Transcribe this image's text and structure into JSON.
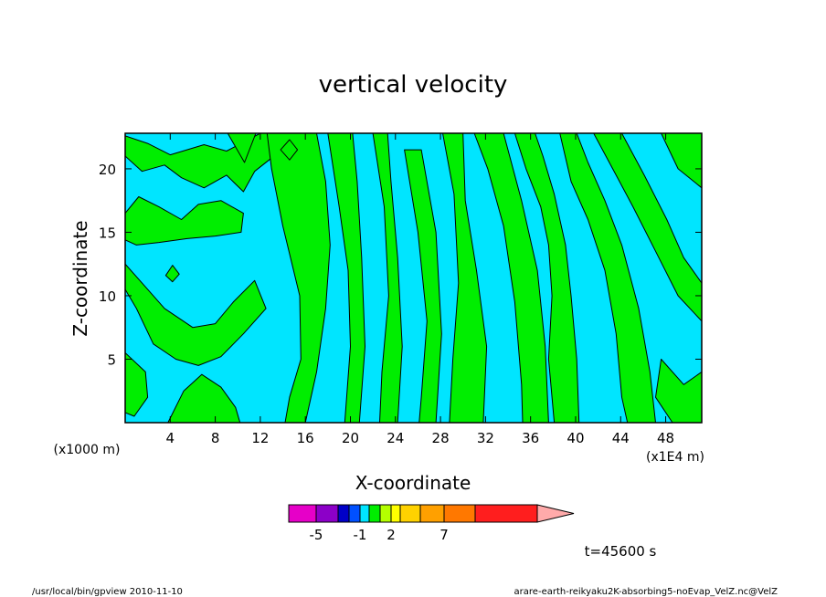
{
  "chart_data": {
    "type": "heatmap",
    "title": "vertical velocity",
    "xlabel": "X-coordinate",
    "ylabel": "Z-coordinate",
    "x_unit_note": "(x1000 m)",
    "x_scale_note": "(x1E4 m)",
    "time_label": "t=45600 s",
    "xlim": [
      0,
      51.2
    ],
    "ylim": [
      0,
      22.8
    ],
    "x_ticks": [
      "4",
      "8",
      "12",
      "16",
      "20",
      "24",
      "28",
      "32",
      "36",
      "40",
      "44",
      "48"
    ],
    "x_tick_values": [
      4,
      8,
      12,
      16,
      20,
      24,
      28,
      32,
      36,
      40,
      44,
      48
    ],
    "y_ticks": [
      "5",
      "10",
      "15",
      "20"
    ],
    "y_tick_values": [
      5,
      10,
      15,
      20
    ],
    "field_colors": {
      "negative": "#00e5ff",
      "positive": "#00ee00",
      "contour": "#000000"
    },
    "positive_bands": [
      {
        "points": [
          [
            0,
            16.5
          ],
          [
            1.2,
            17.8
          ],
          [
            3,
            17
          ],
          [
            5,
            16
          ],
          [
            6.5,
            17.2
          ],
          [
            8.5,
            17.5
          ],
          [
            10.5,
            16.5
          ],
          [
            10.3,
            15
          ],
          [
            8,
            14.7
          ],
          [
            5.5,
            14.5
          ],
          [
            3,
            14.2
          ],
          [
            1,
            14
          ],
          [
            0,
            14.4
          ]
        ]
      },
      {
        "points": [
          [
            0,
            21
          ],
          [
            1.5,
            19.8
          ],
          [
            3.5,
            20.3
          ],
          [
            5,
            19.3
          ],
          [
            7,
            18.5
          ],
          [
            9,
            19.5
          ],
          [
            10.5,
            18.2
          ],
          [
            11.5,
            19.8
          ],
          [
            13.5,
            21.2
          ],
          [
            14.5,
            22.8
          ],
          [
            12,
            22.8
          ],
          [
            9,
            21.4
          ],
          [
            7,
            21.9
          ],
          [
            4,
            21.1
          ],
          [
            2,
            22
          ],
          [
            0,
            22.6
          ]
        ]
      },
      {
        "points": [
          [
            0,
            12.5
          ],
          [
            1.5,
            11
          ],
          [
            3.5,
            9
          ],
          [
            6,
            7.5
          ],
          [
            8,
            7.8
          ],
          [
            9.6,
            9.5
          ],
          [
            11.5,
            11.2
          ],
          [
            12.5,
            9
          ],
          [
            10.5,
            7
          ],
          [
            8.5,
            5.2
          ],
          [
            6.5,
            4.5
          ],
          [
            4.5,
            5
          ],
          [
            2.5,
            6.2
          ],
          [
            1,
            9
          ],
          [
            0,
            10.5
          ]
        ]
      },
      {
        "points": [
          [
            0,
            5.5
          ],
          [
            1.8,
            4
          ],
          [
            2,
            2
          ],
          [
            0.8,
            0.5
          ],
          [
            0,
            0.8
          ]
        ]
      },
      {
        "points": [
          [
            3.8,
            0
          ],
          [
            5.2,
            2.5
          ],
          [
            6.8,
            3.8
          ],
          [
            8.5,
            2.8
          ],
          [
            9.8,
            1.2
          ],
          [
            10.2,
            0
          ]
        ]
      },
      {
        "points": [
          [
            12.6,
            22.8
          ],
          [
            13,
            20
          ],
          [
            14,
            15.5
          ],
          [
            15.5,
            10
          ],
          [
            15.6,
            5
          ],
          [
            14.6,
            2
          ],
          [
            14.2,
            0
          ],
          [
            16,
            0
          ],
          [
            17,
            4
          ],
          [
            17.8,
            9
          ],
          [
            18.2,
            14
          ],
          [
            17.8,
            19
          ],
          [
            17,
            22.8
          ]
        ]
      },
      {
        "points": [
          [
            18,
            22.8
          ],
          [
            19,
            17
          ],
          [
            19.8,
            12
          ],
          [
            20,
            6
          ],
          [
            19.5,
            0
          ],
          [
            20.8,
            0
          ],
          [
            21.3,
            6
          ],
          [
            21,
            13
          ],
          [
            20.6,
            19
          ],
          [
            20.2,
            22.8
          ]
        ]
      },
      {
        "points": [
          [
            22,
            22.8
          ],
          [
            23,
            17
          ],
          [
            23.4,
            10
          ],
          [
            22.8,
            4
          ],
          [
            22.6,
            0
          ],
          [
            24.2,
            0
          ],
          [
            24.6,
            6
          ],
          [
            24.2,
            13
          ],
          [
            23.6,
            19
          ],
          [
            23.3,
            22.8
          ]
        ]
      },
      {
        "points": [
          [
            24.8,
            21.5
          ],
          [
            26,
            15
          ],
          [
            26.8,
            8
          ],
          [
            26.3,
            2
          ],
          [
            26.1,
            0
          ],
          [
            27.6,
            0
          ],
          [
            28.1,
            7
          ],
          [
            27.6,
            15
          ],
          [
            26.3,
            21.5
          ]
        ]
      },
      {
        "points": [
          [
            28.2,
            22.8
          ],
          [
            29.2,
            18
          ],
          [
            29.6,
            11
          ],
          [
            29.1,
            5
          ],
          [
            28.8,
            0
          ],
          [
            31.8,
            0
          ],
          [
            32.1,
            6
          ],
          [
            31.2,
            12
          ],
          [
            30.2,
            17.5
          ],
          [
            30,
            22.8
          ]
        ]
      },
      {
        "points": [
          [
            31,
            22.8
          ],
          [
            32.2,
            20
          ],
          [
            33.6,
            15.5
          ],
          [
            34.6,
            9.5
          ],
          [
            35.2,
            3
          ],
          [
            35.3,
            0
          ],
          [
            37.6,
            0
          ],
          [
            37.3,
            6
          ],
          [
            36.6,
            12
          ],
          [
            35.2,
            17.5
          ],
          [
            33.6,
            22.8
          ]
        ]
      },
      {
        "points": [
          [
            34.6,
            22.8
          ],
          [
            35.6,
            20
          ],
          [
            36.9,
            17
          ],
          [
            37.6,
            14
          ],
          [
            37.9,
            10
          ],
          [
            37.6,
            5
          ],
          [
            38.1,
            0
          ],
          [
            40.3,
            0
          ],
          [
            40.1,
            5
          ],
          [
            39.6,
            10
          ],
          [
            39.1,
            14
          ],
          [
            38.1,
            18
          ],
          [
            37.1,
            21
          ],
          [
            36.4,
            22.8
          ]
        ]
      },
      {
        "points": [
          [
            38.6,
            22.8
          ],
          [
            39.6,
            19
          ],
          [
            41.1,
            16
          ],
          [
            42.6,
            12
          ],
          [
            43.6,
            7
          ],
          [
            44.1,
            2
          ],
          [
            44.6,
            0
          ],
          [
            47.1,
            0
          ],
          [
            46.6,
            4
          ],
          [
            45.6,
            9
          ],
          [
            44.1,
            14
          ],
          [
            42.6,
            17.5
          ],
          [
            41.1,
            20.5
          ],
          [
            40.1,
            22.8
          ]
        ]
      },
      {
        "points": [
          [
            41.6,
            22.8
          ],
          [
            43.6,
            19.5
          ],
          [
            45.1,
            17
          ],
          [
            47.1,
            13.5
          ],
          [
            49.1,
            10
          ],
          [
            51.2,
            8
          ],
          [
            51.2,
            11
          ],
          [
            49.6,
            13
          ],
          [
            48.1,
            16
          ],
          [
            46.1,
            19.5
          ],
          [
            44.1,
            22.8
          ]
        ]
      },
      {
        "points": [
          [
            47.6,
            22.8
          ],
          [
            49.1,
            20
          ],
          [
            51.2,
            18.5
          ],
          [
            51.2,
            22.8
          ]
        ]
      },
      {
        "points": [
          [
            47.6,
            5
          ],
          [
            49.6,
            3
          ],
          [
            51.2,
            4
          ],
          [
            51.2,
            0
          ],
          [
            48.6,
            0
          ],
          [
            47.1,
            2
          ]
        ]
      },
      {
        "points": [
          [
            9.1,
            22.8
          ],
          [
            10.6,
            20.5
          ],
          [
            11.6,
            22.8
          ]
        ]
      },
      {
        "points": [
          [
            3.6,
            11.6
          ],
          [
            4.2,
            12.4
          ],
          [
            4.8,
            11.7
          ],
          [
            4.2,
            11.1
          ]
        ]
      },
      {
        "points": [
          [
            13.8,
            21.5
          ],
          [
            14.6,
            22.3
          ],
          [
            15.3,
            21.5
          ],
          [
            14.6,
            20.7
          ]
        ]
      }
    ]
  },
  "colorbar": {
    "swatches": [
      "#e600c8",
      "#8c00c8",
      "#0000c8",
      "#0050ff",
      "#00e5ff",
      "#00ee00",
      "#b4ff00",
      "#ffff00",
      "#ffd200",
      "#ffa000",
      "#ff7800",
      "#ff1e1e",
      "#ff7878",
      "#ffaaaa"
    ],
    "labels": [
      "-5",
      "-1",
      "2",
      "7"
    ]
  },
  "footer": {
    "left": "/usr/local/bin/gpview  2010-11-10",
    "right": "arare-earth-reikyaku2K-absorbing5-noEvap_VelZ.nc@VelZ"
  }
}
